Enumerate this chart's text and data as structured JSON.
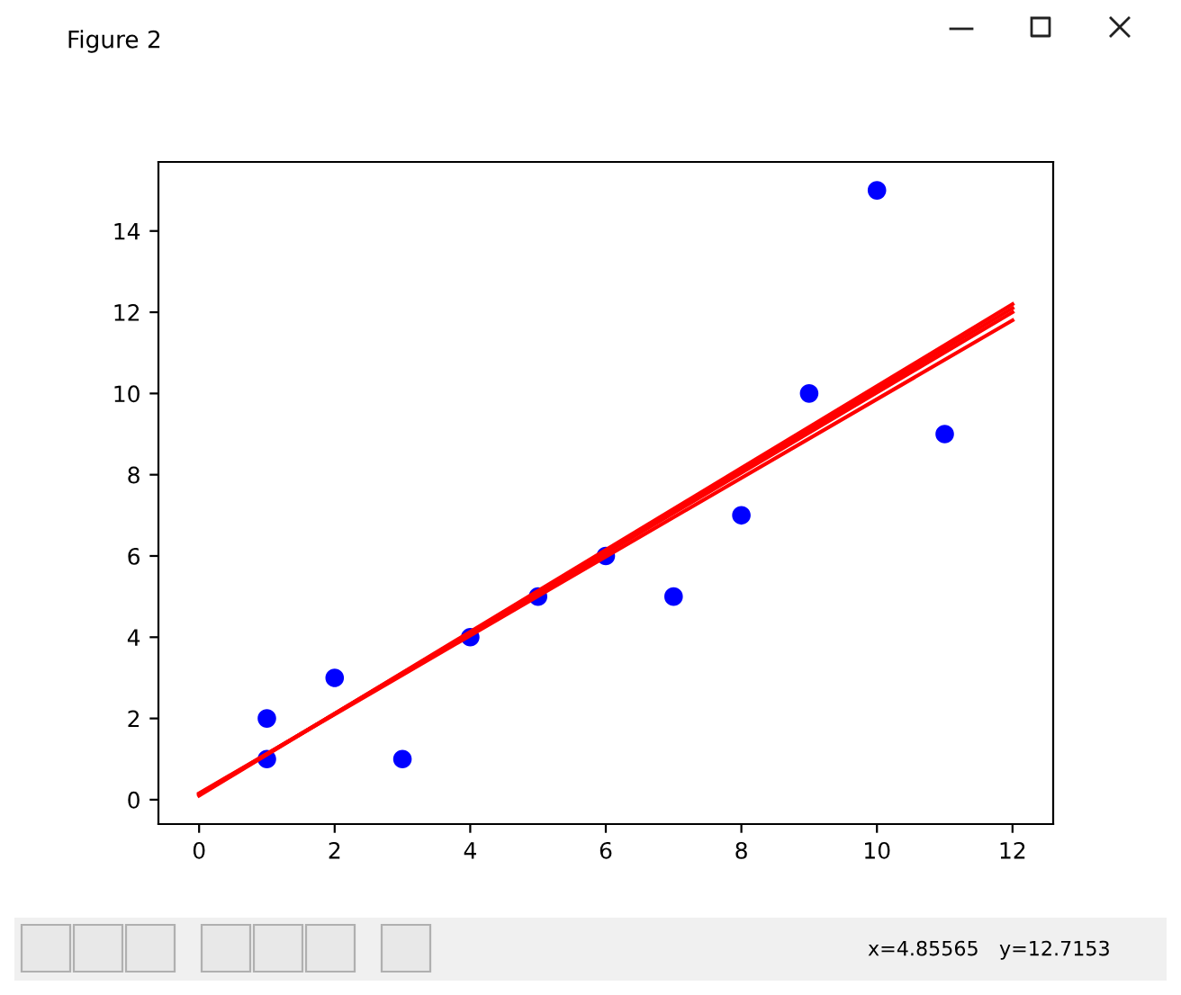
{
  "chart_data": {
    "type": "scatter",
    "annotations": [
      "Figure 2",
      "x=4.85565",
      "y=12.7153"
    ],
    "x": [
      0,
      12
    ],
    "series": [
      {
        "color": "#0000ff",
        "marker": "circle",
        "x": [
          1,
          1,
          2,
          3,
          4,
          5,
          6,
          7,
          8,
          9,
          10,
          11
        ],
        "values": [
          2,
          1,
          3,
          1,
          4,
          5,
          6,
          5,
          7,
          10,
          15,
          9
        ]
      },
      {
        "type": "line",
        "color": "#ff0000",
        "values": [
          0.1,
          12.2
        ]
      },
      {
        "type": "line",
        "color": "#ff0000",
        "values": [
          0.12,
          12.1
        ]
      },
      {
        "type": "line",
        "color": "#ff0000",
        "values": [
          0.14,
          12.0
        ]
      },
      {
        "type": "line",
        "color": "#ff0000",
        "values": [
          0.16,
          11.8
        ]
      }
    ],
    "xlim": [
      -0.6,
      12.6
    ],
    "ylim": [
      -0.6,
      15.7
    ],
    "xticks": [
      0,
      2,
      4,
      6,
      8,
      10,
      12
    ],
    "yticks": [
      0,
      2,
      4,
      6,
      8,
      10,
      12,
      14
    ],
    "grid": false,
    "legend": false
  }
}
